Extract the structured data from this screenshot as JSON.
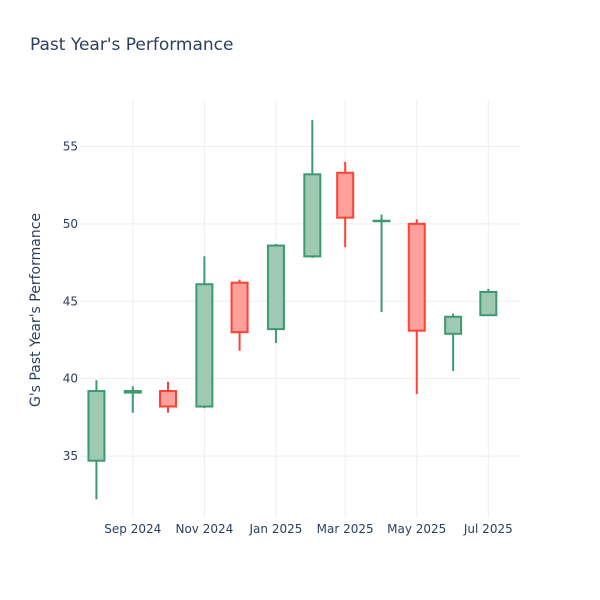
{
  "chart_data": {
    "type": "candlestick",
    "title": "Past Year's Performance",
    "xlabel": "",
    "ylabel": "G's Past Year's Performance",
    "ylim": [
      31,
      58
    ],
    "y_ticks": [
      35,
      40,
      45,
      50,
      55
    ],
    "x_ticks": [
      {
        "date": "2024-09-01",
        "label": "Sep 2024"
      },
      {
        "date": "2024-11-01",
        "label": "Nov 2024"
      },
      {
        "date": "2025-01-01",
        "label": "Jan 2025"
      },
      {
        "date": "2025-03-01",
        "label": "Mar 2025"
      },
      {
        "date": "2025-05-01",
        "label": "May 2025"
      },
      {
        "date": "2025-07-01",
        "label": "Jul 2025"
      }
    ],
    "x_range": [
      "2024-07-18",
      "2025-07-28"
    ],
    "candles": [
      {
        "date": "2024-08-01",
        "open": 34.7,
        "high": 39.9,
        "low": 32.2,
        "close": 39.2
      },
      {
        "date": "2024-09-01",
        "open": 39.1,
        "high": 39.5,
        "low": 37.8,
        "close": 39.2
      },
      {
        "date": "2024-10-01",
        "open": 39.2,
        "high": 39.8,
        "low": 37.8,
        "close": 38.2
      },
      {
        "date": "2024-11-01",
        "open": 38.2,
        "high": 47.9,
        "low": 38.1,
        "close": 46.1
      },
      {
        "date": "2024-12-01",
        "open": 46.2,
        "high": 46.4,
        "low": 41.8,
        "close": 43.0
      },
      {
        "date": "2025-01-01",
        "open": 43.2,
        "high": 48.7,
        "low": 42.3,
        "close": 48.6
      },
      {
        "date": "2025-02-01",
        "open": 47.9,
        "high": 56.7,
        "low": 47.8,
        "close": 53.2
      },
      {
        "date": "2025-03-01",
        "open": 53.3,
        "high": 54.0,
        "low": 48.5,
        "close": 50.4
      },
      {
        "date": "2025-04-01",
        "open": 50.2,
        "high": 50.6,
        "low": 44.3,
        "close": 50.2
      },
      {
        "date": "2025-05-01",
        "open": 50.0,
        "high": 50.3,
        "low": 39.0,
        "close": 43.1
      },
      {
        "date": "2025-06-01",
        "open": 42.9,
        "high": 44.2,
        "low": 40.5,
        "close": 44.0
      },
      {
        "date": "2025-07-01",
        "open": 44.1,
        "high": 45.8,
        "low": 44.1,
        "close": 45.6
      }
    ],
    "colors": {
      "increasing_line": "#3d9970",
      "increasing_fill": "#9ecab3",
      "decreasing_line": "#ff4136",
      "decreasing_fill": "#ffa09b",
      "grid": "#eeeeee",
      "text": "#2a3f5f"
    }
  }
}
